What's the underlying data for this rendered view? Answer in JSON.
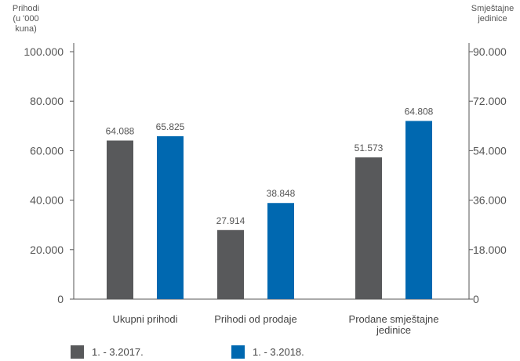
{
  "chart_data": {
    "type": "bar",
    "left_axis_title": [
      "Prihodi",
      "(u '000 kuna)"
    ],
    "right_axis_title": [
      "Smještajne",
      "jedinice"
    ],
    "left_ticks": [
      "0",
      "20.000",
      "40.000",
      "60.000",
      "80.000",
      "100.000"
    ],
    "right_ticks": [
      "0",
      "18.000",
      "36.000",
      "54.000",
      "72.000",
      "90.000"
    ],
    "categories": [
      {
        "lines": [
          "Ukupni prihodi"
        ],
        "axis": "left"
      },
      {
        "lines": [
          "Prihodi od prodaje"
        ],
        "axis": "left"
      },
      {
        "lines": [
          "Prodane smještajne",
          "jedinice"
        ],
        "axis": "right"
      }
    ],
    "ylim_left": [
      0,
      100000
    ],
    "ylim_right": [
      0,
      90000
    ],
    "series": [
      {
        "name": "1. - 3.2017.",
        "color": "#58595b",
        "values": [
          64088,
          27914,
          51573
        ],
        "labels": [
          "64.088",
          "27.914",
          "51.573"
        ]
      },
      {
        "name": "1. - 3.2018.",
        "color": "#0068b0",
        "values": [
          65825,
          38848,
          64808
        ],
        "labels": [
          "65.825",
          "38.848",
          "64.808"
        ]
      }
    ],
    "grid": false,
    "legend_position": "bottom-left"
  }
}
